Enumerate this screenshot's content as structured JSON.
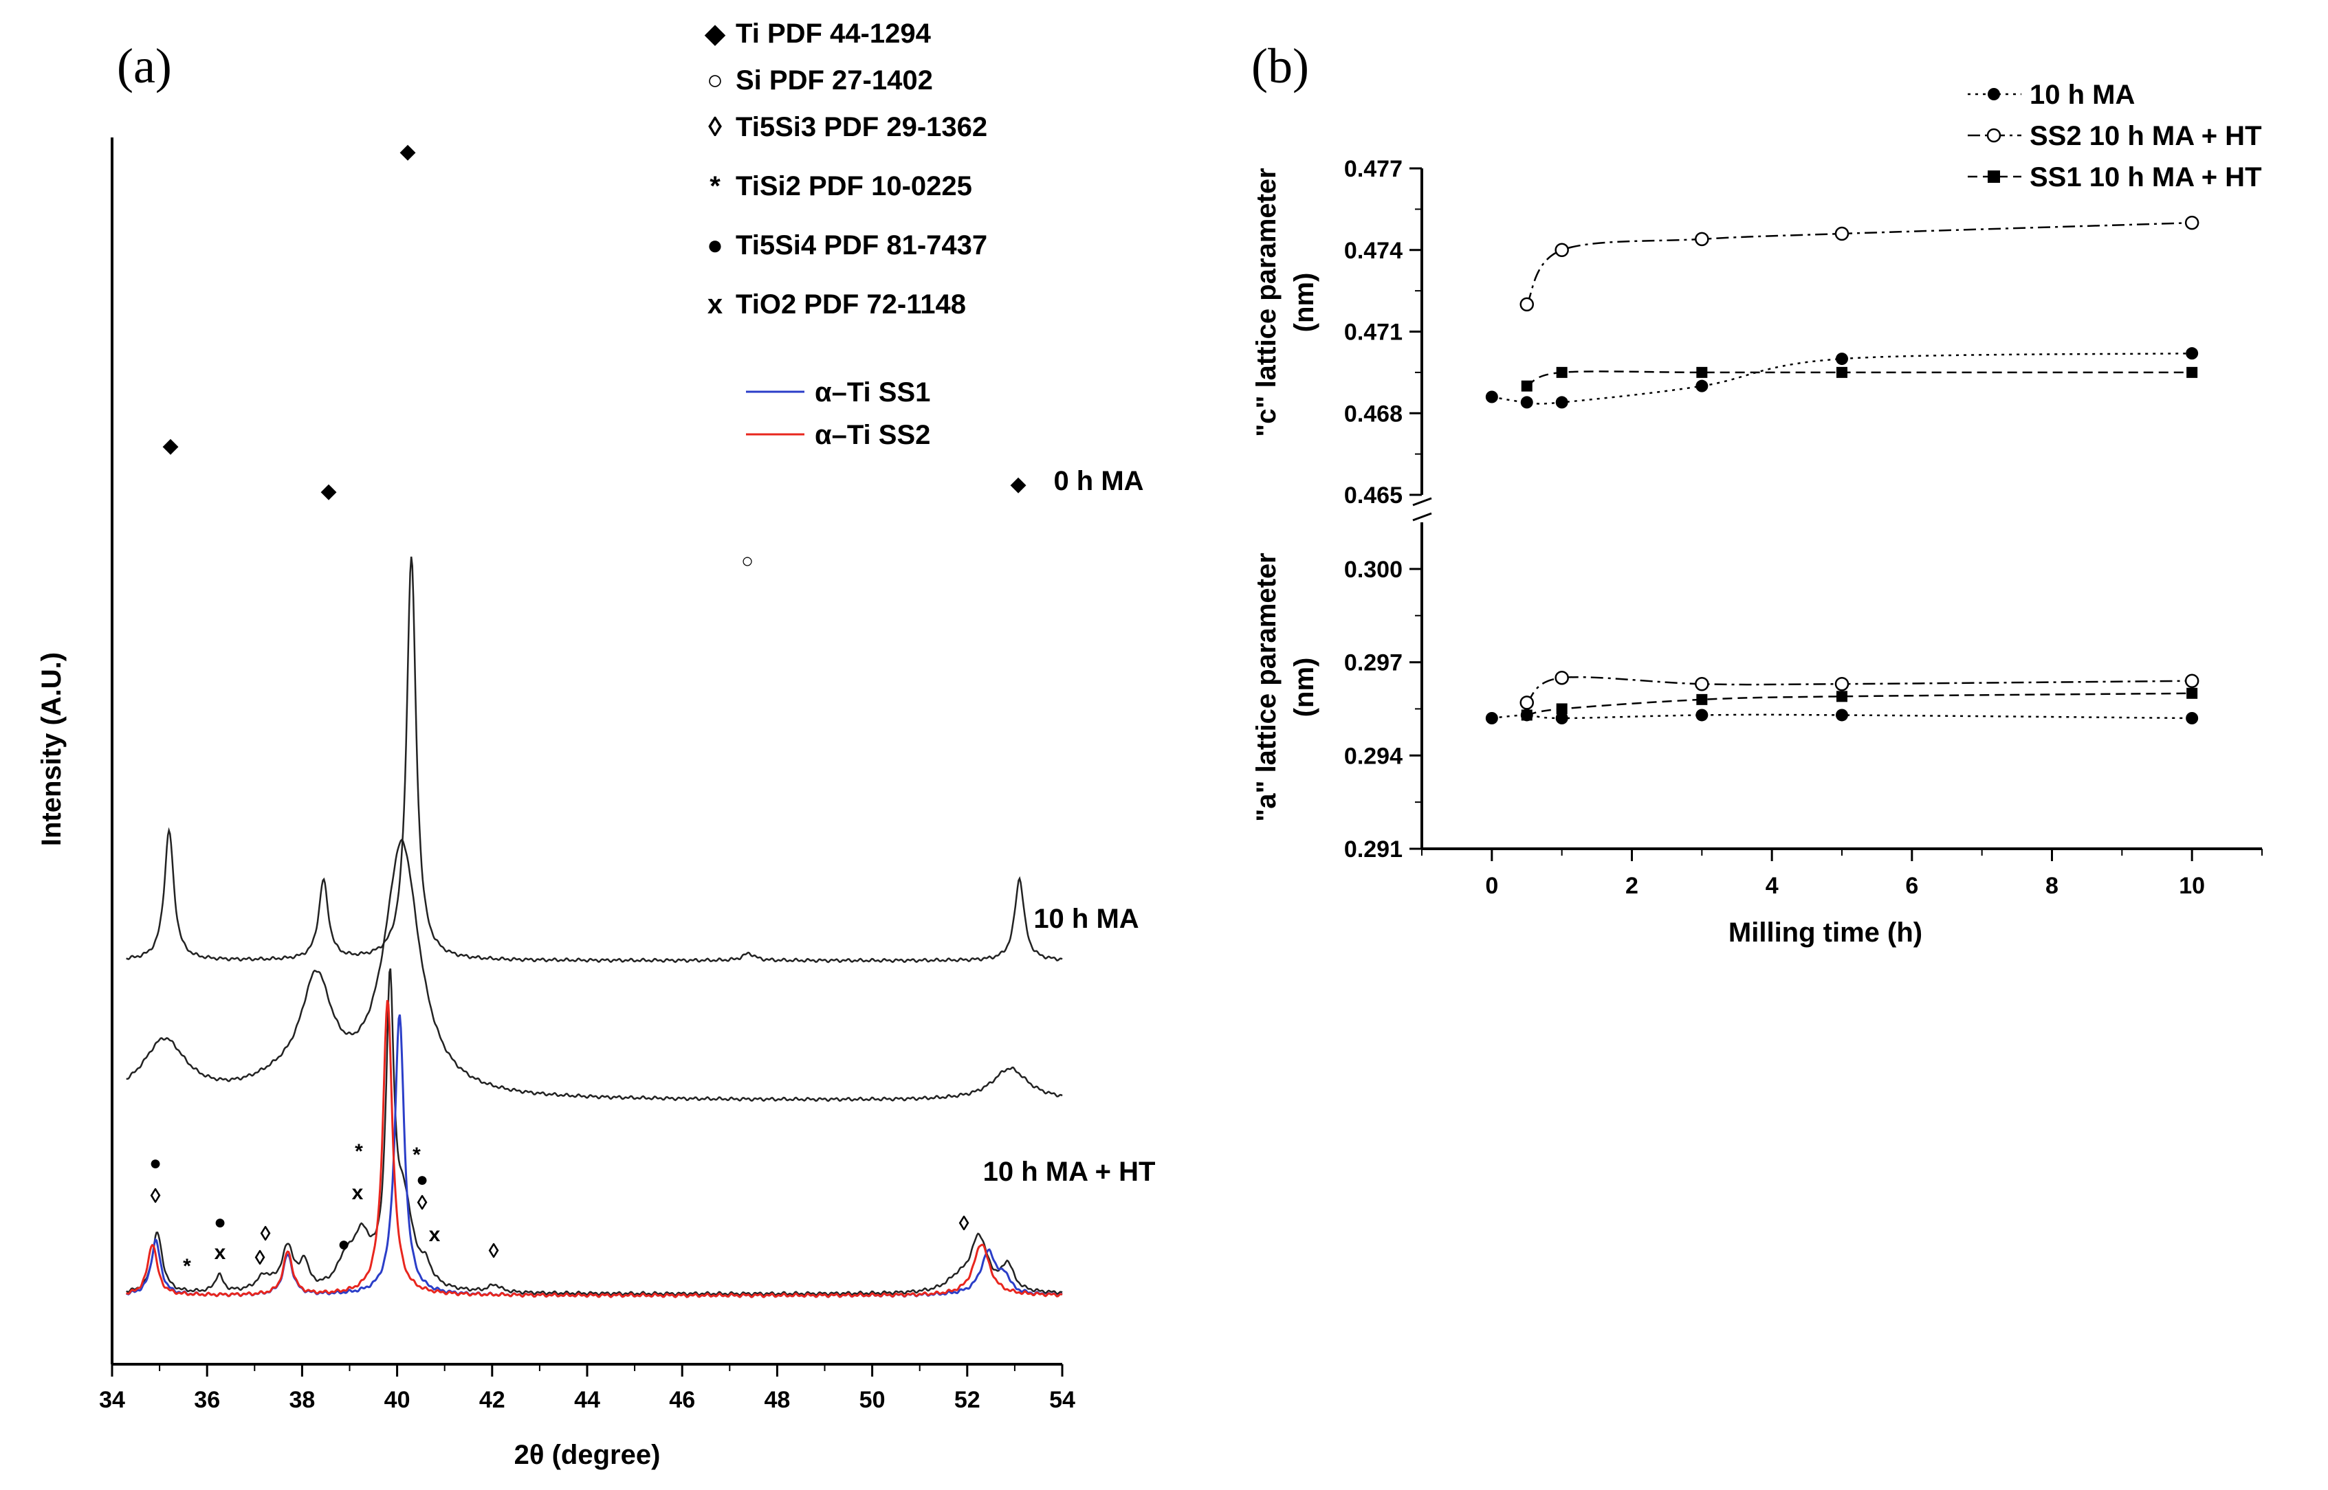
{
  "chart_data": [
    {
      "panel": "(a)",
      "type": "line",
      "xlabel": "2θ (degree)",
      "ylabel": "Intensity (A.U.)",
      "xlim": [
        34,
        54
      ],
      "xticks": [
        "34",
        "36",
        "38",
        "40",
        "42",
        "44",
        "46",
        "48",
        "50",
        "52",
        "54"
      ],
      "legend_phases": [
        {
          "symbol": "◆",
          "name": "Ti PDF 44-1294"
        },
        {
          "symbol": "○",
          "name": "Si PDF 27-1402"
        },
        {
          "symbol": "◊",
          "name": "Ti5Si3 PDF 29-1362"
        },
        {
          "symbol": "*",
          "name": "TiSi2 PDF 10-0225"
        },
        {
          "symbol": "●",
          "name": "Ti5Si4 PDF 81-7437"
        },
        {
          "symbol": "x",
          "name": "TiO2 PDF 72-1148"
        }
      ],
      "legend_lines": [
        {
          "name": "α–Ti SS1",
          "color": "#2b3ec8"
        },
        {
          "name": "α–Ti SS2",
          "color": "#e8261e"
        }
      ],
      "series": [
        {
          "name": "0 h MA",
          "color": "#222222",
          "offset": 2.3,
          "baseline": 0.02,
          "peaks": [
            [
              35.2,
              0.9,
              0.12
            ],
            [
              38.45,
              0.55,
              0.12
            ],
            [
              40.3,
              2.8,
              0.12
            ],
            [
              47.4,
              0.05,
              0.15
            ],
            [
              53.1,
              0.57,
              0.12
            ]
          ]
        },
        {
          "name": "10 h MA",
          "color": "#222222",
          "offset": 1.3,
          "baseline": 0.05,
          "peaks": [
            [
              35.1,
              0.4,
              0.55
            ],
            [
              38.3,
              0.75,
              0.4
            ],
            [
              40.1,
              1.75,
              0.45
            ],
            [
              37.5,
              0.08,
              0.8
            ],
            [
              52.9,
              0.22,
              0.45
            ]
          ]
        },
        {
          "name": "10 h MA + HT",
          "color": "#222222",
          "offset": 0,
          "baseline": 0.01,
          "peaks": [
            [
              34.95,
              0.42,
              0.13
            ],
            [
              36.25,
              0.12,
              0.1
            ],
            [
              37.2,
              0.1,
              0.2
            ],
            [
              37.7,
              0.3,
              0.16
            ],
            [
              38.05,
              0.18,
              0.1
            ],
            [
              38.9,
              0.15,
              0.2
            ],
            [
              39.25,
              0.35,
              0.25
            ],
            [
              39.85,
              2.0,
              0.1
            ],
            [
              40.15,
              0.55,
              0.22
            ],
            [
              40.6,
              0.12,
              0.15
            ],
            [
              42.05,
              0.05,
              0.15
            ],
            [
              52.25,
              0.38,
              0.22
            ],
            [
              52.85,
              0.18,
              0.15
            ],
            [
              51.8,
              0.08,
              0.3
            ]
          ]
        },
        {
          "name": "α–Ti SS1",
          "color": "#2b3ec8",
          "offset": 0,
          "baseline": 0,
          "peaks": [
            [
              34.92,
              0.38,
              0.12
            ],
            [
              37.7,
              0.28,
              0.12
            ],
            [
              40.05,
              1.95,
              0.12
            ],
            [
              52.45,
              0.3,
              0.2
            ],
            [
              52.8,
              0.1,
              0.12
            ]
          ]
        },
        {
          "name": "α–Ti SS2",
          "color": "#e8261e",
          "offset": 0,
          "baseline": 0,
          "peaks": [
            [
              34.85,
              0.36,
              0.12
            ],
            [
              37.7,
              0.3,
              0.12
            ],
            [
              39.8,
              2.05,
              0.12
            ],
            [
              52.3,
              0.36,
              0.2
            ]
          ]
        }
      ],
      "curve_labels": [
        "0 h MA",
        "10 h MA",
        "10 h MA + HT"
      ]
    },
    {
      "panel": "(b)",
      "type": "line",
      "xlabel": "Milling time (h)",
      "xlim": [
        -1,
        11
      ],
      "xticks": [
        "0",
        "2",
        "4",
        "6",
        "8",
        "10"
      ],
      "top": {
        "ylabel_prefix": "\"c\"",
        "ylabel_mid": " lattice parameter",
        "ylabel_unit": "(nm)",
        "ylim": [
          0.465,
          0.477
        ],
        "yticks": [
          "0.465",
          "0.468",
          "0.471",
          "0.474",
          "0.477"
        ],
        "series": [
          {
            "name": "10 h MA",
            "marker": "filled-circle",
            "dash": "4,7",
            "x": [
              0,
              0.5,
              1,
              3,
              5,
              10
            ],
            "y": [
              0.4686,
              0.4684,
              0.4684,
              0.469,
              0.47,
              0.4702
            ]
          },
          {
            "name": "SS2 10 h MA + HT",
            "marker": "open-circle",
            "dash": "18,7,4,7",
            "x": [
              0.5,
              1,
              3,
              5,
              10
            ],
            "y": [
              0.472,
              0.474,
              0.4744,
              0.4746,
              0.475
            ]
          },
          {
            "name": "SS1 10 h MA + HT",
            "marker": "filled-square",
            "dash": "14,8",
            "x": [
              0.5,
              1,
              3,
              5,
              10
            ],
            "y": [
              0.469,
              0.4695,
              0.4695,
              0.4695,
              0.4695
            ]
          }
        ]
      },
      "bottom": {
        "ylabel_prefix": "\"a\"",
        "ylabel_mid": " lattice parameter",
        "ylabel_unit": "(nm)",
        "ylim": [
          0.291,
          0.3015
        ],
        "yticks": [
          "0.291",
          "0.294",
          "0.297",
          "0.300"
        ],
        "series": [
          {
            "name": "10 h MA",
            "marker": "filled-circle",
            "dash": "4,7",
            "x": [
              0,
              0.5,
              1,
              3,
              5,
              10
            ],
            "y": [
              0.2952,
              0.2953,
              0.2952,
              0.2953,
              0.2953,
              0.2952
            ]
          },
          {
            "name": "SS2 10 h MA + HT",
            "marker": "open-circle",
            "dash": "18,7,4,7",
            "x": [
              0.5,
              1,
              3,
              5,
              10
            ],
            "y": [
              0.2957,
              0.2965,
              0.2963,
              0.2963,
              0.2964
            ]
          },
          {
            "name": "SS1 10 h MA + HT",
            "marker": "filled-square",
            "dash": "14,8",
            "x": [
              0.5,
              1,
              3,
              5,
              10
            ],
            "y": [
              0.2953,
              0.2955,
              0.2958,
              0.2959,
              0.296
            ]
          }
        ]
      },
      "legend": [
        "10 h MA",
        "SS2 10 h MA + HT",
        "SS1 10 h MA + HT"
      ]
    }
  ]
}
